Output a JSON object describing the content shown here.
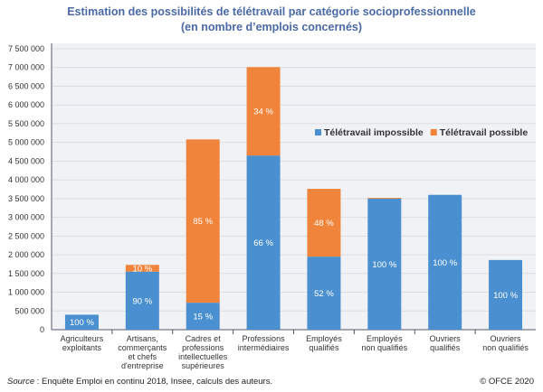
{
  "chart_data": {
    "type": "bar",
    "stacked": true,
    "title": "Estimation des possibilités de télétravail par catégorie socioprofessionnelle",
    "subtitle": "(en nombre d’emplois concernés)",
    "ylim": [
      0,
      7500000
    ],
    "yticks": [
      0,
      500000,
      1000000,
      1500000,
      2000000,
      2500000,
      3000000,
      3500000,
      4000000,
      4500000,
      5000000,
      5500000,
      6000000,
      6500000,
      7000000,
      7500000
    ],
    "ytick_labels": [
      "0",
      "500 000",
      "1 000 000",
      "1 500 000",
      "2 000 000",
      "2 500 000",
      "3 000 000",
      "3 500 000",
      "4 000 000",
      "4 500 000",
      "5 000 000",
      "5 500 000",
      "6 000 000",
      "6 500 000",
      "7 000 000",
      "7 500 000"
    ],
    "grid": true,
    "legend_placement": "top-right",
    "categories": [
      "Agriculteurs\nexploitants",
      "Artisans,\ncommerçants\net chefs\nd'entreprise",
      "Cadres et\nprofessions\nintellectuelles\nsupérieures",
      "Professions\nintermédiaires",
      "Employés\nqualifiés",
      "Employés\nnon qualifiés",
      "Ouvriers\nqualifiés",
      "Ouvriers\nnon qualifiés"
    ],
    "series": [
      {
        "name": "Télétravail impossible",
        "color": "#4a90d0",
        "values": [
          400000,
          1550000,
          720000,
          4650000,
          1950000,
          3500000,
          3600000,
          1860000
        ],
        "labels": [
          "100 %",
          "90 %",
          "15 %",
          "66 %",
          "52 %",
          "100 %",
          "100 %",
          "100 %"
        ]
      },
      {
        "name": "Télétravail possible",
        "color": "#f0843a",
        "values": [
          0,
          180000,
          4360000,
          2360000,
          1810000,
          20000,
          0,
          0
        ],
        "labels": [
          "",
          "10 %",
          "85 %",
          "34 %",
          "48 %",
          "",
          "",
          ""
        ]
      }
    ]
  },
  "footer": {
    "source_label": "Source",
    "source_text": " : Enquête Emploi en continu 2018, Insee, calculs des auteurs.",
    "copyright": "© OFCE 2020"
  },
  "colors": {
    "title": "#4a6aa5",
    "plot_bg": "#f1f2f6"
  }
}
